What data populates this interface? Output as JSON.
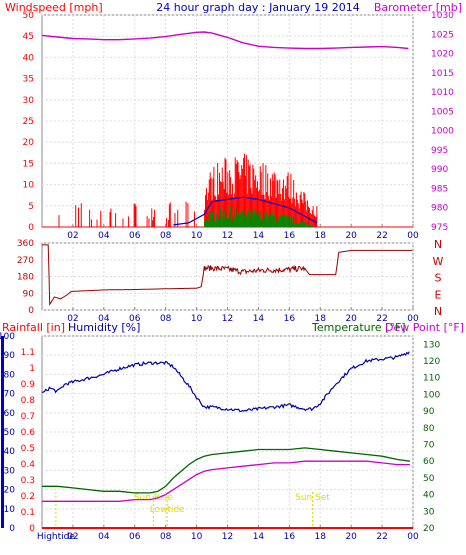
{
  "chart_data": [
    {
      "type": "line",
      "panel": "wind-barometer",
      "title": "24 hour graph day : January 19 2014",
      "ylabel_left": "Windspeed [mph]",
      "ylabel_right": "Barometer [mb]",
      "ylim_left": [
        0,
        50
      ],
      "ylim_right": [
        975,
        1030
      ],
      "yticks_left": [
        "0",
        "5",
        "10",
        "15",
        "20",
        "25",
        "30",
        "35",
        "40",
        "45",
        "50"
      ],
      "yticks_right": [
        "975",
        "980",
        "985",
        "990",
        "995",
        "1000",
        "1005",
        "1010",
        "1015",
        "1020",
        "1025",
        "1030"
      ],
      "x_ticks": [
        "02",
        "04",
        "06",
        "08",
        "10",
        "12",
        "14",
        "16",
        "18",
        "20",
        "22",
        "00"
      ],
      "xlim_hours": [
        0,
        24
      ],
      "colors": {
        "gust": "#ff0000",
        "wind_avg": "#0000cc",
        "wind_min": "#008800",
        "barometer": "#cc00cc"
      },
      "series": [
        {
          "role": "barometer",
          "x": [
            0,
            1,
            2,
            3,
            4,
            5,
            6,
            7,
            8,
            9,
            10,
            10.5,
            11,
            12,
            13,
            14,
            15,
            16,
            17,
            18,
            19,
            20,
            21,
            22,
            23,
            23.7
          ],
          "values": [
            1024.7,
            1024.3,
            1023.9,
            1023.8,
            1023.6,
            1023.6,
            1023.8,
            1024.0,
            1024.4,
            1025.0,
            1025.5,
            1025.6,
            1025.3,
            1024.2,
            1022.8,
            1021.9,
            1021.6,
            1021.4,
            1021.3,
            1021.3,
            1021.4,
            1021.6,
            1021.7,
            1021.8,
            1021.6,
            1021.3
          ]
        },
        {
          "role": "gust",
          "x": [
            10.5,
            11,
            12,
            13,
            14,
            15,
            16,
            17,
            17.8
          ],
          "values": [
            7,
            11,
            12.5,
            13,
            12,
            11,
            10,
            6,
            4
          ]
        },
        {
          "role": "wind_avg",
          "x": [
            8.5,
            9.5,
            10.5,
            11,
            12,
            13,
            14,
            15,
            16,
            17,
            17.8
          ],
          "values": [
            0.5,
            1,
            3,
            6,
            6.5,
            7,
            6.5,
            5.5,
            4.5,
            2.5,
            1
          ]
        },
        {
          "role": "wind_min",
          "x": [
            10.5,
            11,
            12,
            13,
            14,
            15,
            16,
            17,
            17.5
          ],
          "values": [
            2,
            3,
            3.5,
            3.5,
            3,
            2.5,
            2,
            1,
            0.5
          ]
        }
      ]
    },
    {
      "type": "line",
      "panel": "wind-direction",
      "ylim": [
        0,
        360
      ],
      "yticks": [
        "0",
        "90",
        "180",
        "270",
        "360"
      ],
      "compass_labels": [
        "N",
        "W",
        "S",
        "E",
        "N"
      ],
      "x_ticks": [
        "02",
        "04",
        "06",
        "08",
        "10",
        "12",
        "14",
        "16",
        "18",
        "20",
        "22",
        "00"
      ],
      "colors": {
        "direction": "#990000"
      },
      "series": [
        {
          "role": "direction",
          "x": [
            0,
            0.4,
            0.5,
            0.8,
            1.2,
            1.6,
            1.9,
            3,
            4,
            6,
            8,
            10,
            10.3,
            10.5,
            11,
            12,
            13,
            14,
            15,
            16,
            17,
            17.3,
            18,
            19,
            19.2,
            20,
            24
          ],
          "values": [
            350,
            350,
            30,
            70,
            60,
            80,
            100,
            104,
            108,
            110,
            114,
            117,
            125,
            225,
            225,
            220,
            205,
            212,
            215,
            218,
            224,
            190,
            190,
            190,
            310,
            320,
            320
          ]
        }
      ]
    },
    {
      "type": "line",
      "panel": "rain-humidity-temperature",
      "ylabel_rain": "Rainfall [in]",
      "ylabel_humidity": "Humidity [%]",
      "ylabel_temp": "Temperature [°F]",
      "ylabel_dew": "Dew Point [°F]",
      "ylim_humidity": [
        0,
        100
      ],
      "ylim_rain": [
        0,
        1.2
      ],
      "ylim_temp": [
        20,
        135
      ],
      "yticks_humidity": [
        "0",
        "10",
        "20",
        "30",
        "40",
        "50",
        "60",
        "70",
        "80",
        "90",
        "100"
      ],
      "yticks_rain": [
        "0",
        "0.1",
        "0.2",
        "0.3",
        "0.4",
        "0.5",
        "0.6",
        "0.7",
        "0.8",
        "0.9",
        "1",
        "1.1"
      ],
      "yticks_temp": [
        "20",
        "30",
        "40",
        "50",
        "60",
        "70",
        "80",
        "90",
        "100",
        "110",
        "120",
        "130"
      ],
      "x_ticks": [
        "02",
        "04",
        "06",
        "08",
        "10",
        "12",
        "14",
        "16",
        "18",
        "20",
        "22",
        "00"
      ],
      "annotations": [
        {
          "text": "Hightide",
          "x": 0.9
        },
        {
          "text": "Sun Rise",
          "x": 7.2
        },
        {
          "text": "Lowtide",
          "x": 8.1
        },
        {
          "text": "Sun Set",
          "x": 17.5
        }
      ],
      "colors": {
        "humidity": "#0000aa",
        "temperature": "#006600",
        "dew_point": "#cc00cc",
        "rain": "#ff0000",
        "annotation": "#dddd00"
      },
      "series": [
        {
          "role": "humidity",
          "x": [
            0,
            0.5,
            1,
            1.5,
            2,
            3,
            4,
            5,
            6,
            7,
            7.5,
            8,
            8.5,
            9,
            9.5,
            10,
            10.5,
            11,
            12,
            13,
            14,
            15,
            16,
            17,
            17.5,
            18,
            19,
            20,
            21,
            22,
            23,
            23.8
          ],
          "values": [
            70,
            73,
            71,
            75,
            76,
            78,
            80,
            83,
            85,
            86,
            86,
            86,
            84,
            79,
            74,
            68,
            63,
            63,
            62,
            61,
            62,
            63,
            64,
            62,
            62,
            65,
            75,
            83,
            87,
            88,
            89,
            92
          ]
        },
        {
          "role": "temperature",
          "x": [
            0,
            1,
            2,
            3,
            4,
            5,
            6,
            7,
            7.5,
            8,
            8.5,
            9,
            9.5,
            10,
            10.5,
            11,
            12,
            13,
            14,
            15,
            16,
            17,
            18,
            19,
            20,
            21,
            22,
            23,
            23.8
          ],
          "values": [
            45,
            45,
            44,
            43,
            42,
            42,
            41,
            41,
            42,
            45,
            50,
            54,
            58,
            61,
            63,
            64,
            65,
            66,
            67,
            67,
            67,
            68,
            67,
            66,
            65,
            64,
            63,
            61,
            60
          ]
        },
        {
          "role": "dew_point",
          "x": [
            0,
            1,
            2,
            3,
            4,
            5,
            6,
            7,
            7.5,
            8,
            8.5,
            9,
            9.5,
            10,
            10.5,
            11,
            12,
            13,
            14,
            15,
            16,
            17,
            18,
            19,
            20,
            21,
            22,
            23,
            23.8
          ],
          "values": [
            36,
            36,
            36,
            36,
            36,
            36,
            37,
            37,
            38,
            40,
            43,
            46,
            49,
            52,
            54,
            55,
            56,
            57,
            58,
            59,
            59,
            60,
            60,
            60,
            60,
            60,
            59,
            58,
            58
          ]
        },
        {
          "role": "rain",
          "x": [
            0,
            24
          ],
          "values": [
            0,
            0
          ]
        }
      ]
    }
  ]
}
